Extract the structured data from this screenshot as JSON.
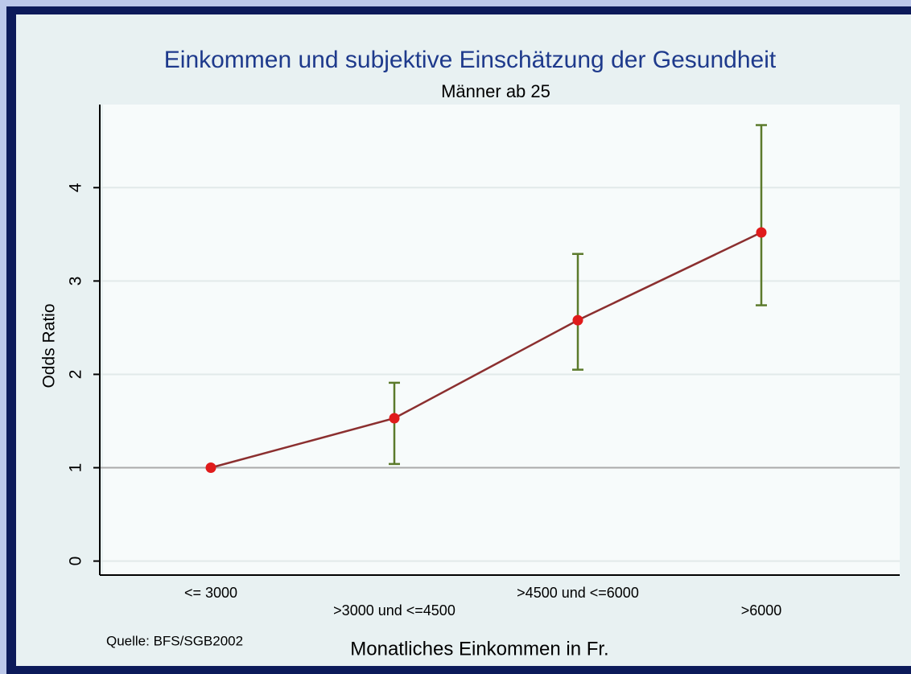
{
  "chart_data": {
    "type": "line",
    "title": "Einkommen und subjektive Einschätzung der Gesundheit",
    "subtitle": "Männer ab 25",
    "x_label": "Monatliches Einkommen in Fr.",
    "y_label": "Odds Ratio",
    "source": "Quelle: BFS/SGB2002",
    "categories": [
      "<= 3000",
      ">3000 und <=4500",
      ">4500 und <=6000",
      ">6000"
    ],
    "series": [
      {
        "name": "Odds Ratio",
        "color": "#8b2f2f",
        "marker_color": "#e01b1b",
        "error_color": "#5b7a2b",
        "values": [
          1,
          1.53,
          2.58,
          3.52
        ],
        "lower": [
          null,
          1.04,
          2.05,
          2.74
        ],
        "upper": [
          null,
          1.91,
          3.29,
          4.67
        ]
      }
    ],
    "reference_line": 1,
    "ylim": [
      -0.15,
      4.89
    ],
    "yticks": [
      0,
      1,
      2,
      3,
      4
    ],
    "grid": true
  }
}
